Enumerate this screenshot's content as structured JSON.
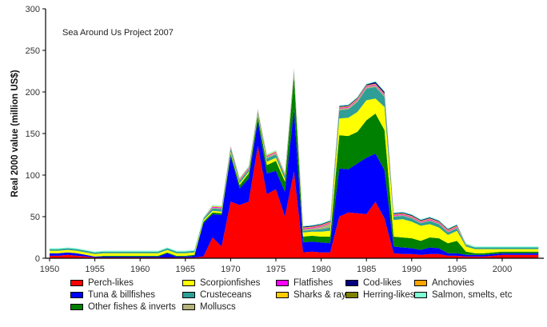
{
  "chart_data": {
    "type": "area",
    "stacked": true,
    "title": "",
    "annotation": "Sea Around Us Project 2007",
    "xlabel": "",
    "ylabel": "Real 2000 value (million US$)",
    "xlim": [
      1950,
      2005
    ],
    "ylim": [
      0,
      300
    ],
    "yticks": [
      "0",
      "50",
      "100",
      "150",
      "200",
      "250",
      "300"
    ],
    "xticks": [
      "1950",
      "1955",
      "1960",
      "1965",
      "1970",
      "1975",
      "1980",
      "1985",
      "1990",
      "1995",
      "2000"
    ],
    "grid": false,
    "legend_position": "bottom",
    "x": [
      1950,
      1951,
      1952,
      1953,
      1954,
      1955,
      1956,
      1957,
      1958,
      1959,
      1960,
      1961,
      1962,
      1963,
      1964,
      1965,
      1966,
      1967,
      1968,
      1969,
      1970,
      1971,
      1972,
      1973,
      1974,
      1975,
      1976,
      1977,
      1978,
      1979,
      1980,
      1981,
      1982,
      1983,
      1984,
      1985,
      1986,
      1987,
      1988,
      1989,
      1990,
      1991,
      1992,
      1993,
      1994,
      1995,
      1996,
      1997,
      1998,
      1999,
      2000,
      2001,
      2002,
      2003,
      2004
    ],
    "series": [
      {
        "name": "Perch-likes",
        "color": "#ff0000",
        "values": [
          3,
          3,
          4,
          3,
          2,
          1,
          1,
          1,
          1,
          1,
          1,
          1,
          1,
          1,
          1,
          1,
          1,
          2,
          25,
          14,
          68,
          64,
          68,
          135,
          77,
          83,
          50,
          104,
          7,
          8,
          7,
          7,
          50,
          55,
          54,
          53,
          68,
          48,
          6,
          5,
          5,
          4,
          5,
          5,
          3,
          3,
          2,
          2,
          2,
          3,
          4,
          4,
          4,
          4,
          4
        ]
      },
      {
        "name": "Tuna & billfishes",
        "color": "#0000ff",
        "values": [
          3,
          3,
          3,
          3,
          2,
          1,
          1,
          1,
          1,
          1,
          1,
          1,
          1,
          5,
          1,
          1,
          2,
          40,
          28,
          38,
          55,
          20,
          28,
          30,
          25,
          22,
          30,
          75,
          12,
          12,
          12,
          11,
          58,
          52,
          60,
          68,
          58,
          58,
          8,
          8,
          7,
          6,
          8,
          7,
          3,
          3,
          2,
          2,
          2,
          2,
          2,
          2,
          2,
          2,
          2
        ]
      },
      {
        "name": "Other fishes & inverts",
        "color": "#008000",
        "values": [
          0,
          0,
          0,
          0,
          0,
          0,
          1,
          1,
          1,
          1,
          1,
          1,
          1,
          1,
          1,
          1,
          1,
          2,
          2,
          2,
          3,
          4,
          6,
          6,
          10,
          12,
          12,
          40,
          7,
          7,
          7,
          8,
          40,
          40,
          38,
          45,
          48,
          48,
          12,
          12,
          12,
          11,
          12,
          12,
          12,
          15,
          4,
          2,
          2,
          2,
          2,
          2,
          2,
          2,
          2
        ]
      },
      {
        "name": "Scorpionfishes",
        "color": "#ffff00",
        "values": [
          3,
          3,
          3,
          3,
          3,
          3,
          3,
          3,
          3,
          3,
          3,
          3,
          3,
          3,
          3,
          3,
          3,
          2,
          2,
          2,
          2,
          2,
          2,
          2,
          4,
          4,
          3,
          2,
          5,
          5,
          6,
          7,
          20,
          22,
          24,
          24,
          18,
          28,
          20,
          22,
          20,
          18,
          16,
          13,
          10,
          12,
          6,
          5,
          5,
          4,
          3,
          3,
          3,
          3,
          3
        ]
      },
      {
        "name": "Crustaceans",
        "color": "#2e9e96",
        "values": [
          2,
          2,
          2,
          2,
          2,
          2,
          2,
          2,
          2,
          2,
          2,
          2,
          2,
          2,
          2,
          2,
          2,
          2,
          3,
          3,
          4,
          3,
          3,
          3,
          4,
          4,
          4,
          4,
          2,
          2,
          3,
          4,
          10,
          10,
          12,
          14,
          14,
          12,
          4,
          4,
          4,
          3,
          4,
          4,
          3,
          3,
          2,
          2,
          2,
          2,
          2,
          2,
          2,
          2,
          2
        ]
      },
      {
        "name": "Molluscs",
        "color": "#b5b27a",
        "values": [
          0,
          0,
          0,
          0,
          0,
          0,
          0,
          0,
          0,
          0,
          0,
          0,
          0,
          0,
          0,
          0,
          0,
          0,
          1,
          1,
          1,
          1,
          1,
          1,
          2,
          2,
          1,
          1,
          2,
          2,
          3,
          5,
          2,
          2,
          2,
          2,
          2,
          2,
          1,
          1,
          1,
          1,
          1,
          1,
          1,
          1,
          1,
          0,
          0,
          0,
          0,
          0,
          0,
          0,
          0
        ]
      },
      {
        "name": "Flatfishes",
        "color": "#ff00ff",
        "values": [
          0,
          0,
          0,
          0,
          0,
          0,
          0,
          0,
          0,
          0,
          0,
          0,
          0,
          0,
          0,
          0,
          0,
          0,
          1,
          1,
          1,
          1,
          1,
          1,
          1,
          1,
          1,
          1,
          1,
          1,
          1,
          1,
          1,
          1,
          1,
          1,
          1,
          1,
          1,
          1,
          1,
          1,
          1,
          1,
          1,
          1,
          0,
          0,
          0,
          0,
          0,
          0,
          0,
          0,
          0
        ]
      },
      {
        "name": "Sharks & rays",
        "color": "#ffcc00",
        "values": [
          0,
          0,
          0,
          0,
          0,
          0,
          0,
          0,
          0,
          0,
          0,
          0,
          0,
          0,
          0,
          0,
          0,
          0,
          1,
          1,
          1,
          1,
          1,
          1,
          1,
          1,
          1,
          1,
          1,
          1,
          1,
          1,
          1,
          1,
          1,
          1,
          1,
          1,
          1,
          1,
          1,
          1,
          1,
          1,
          1,
          1,
          0,
          0,
          0,
          0,
          0,
          0,
          0,
          0,
          0
        ]
      },
      {
        "name": "Cod-likes",
        "color": "#000080",
        "values": [
          0,
          0,
          0,
          0,
          0,
          0,
          0,
          0,
          0,
          0,
          0,
          0,
          0,
          0,
          0,
          0,
          0,
          0,
          0,
          0,
          0,
          0,
          0,
          0,
          0,
          0,
          0,
          0,
          1,
          1,
          1,
          1,
          1,
          1,
          1,
          1,
          2,
          2,
          1,
          1,
          1,
          1,
          1,
          1,
          1,
          1,
          0,
          0,
          0,
          0,
          0,
          0,
          0,
          0,
          0
        ]
      },
      {
        "name": "Herring-likes",
        "color": "#808000",
        "values": [
          0,
          0,
          0,
          0,
          0,
          0,
          0,
          0,
          0,
          0,
          0,
          0,
          0,
          0,
          0,
          0,
          0,
          0,
          0,
          0,
          0,
          0,
          0,
          0,
          0,
          0,
          0,
          0,
          0,
          0,
          0,
          0,
          0,
          0,
          0,
          0,
          0,
          0,
          0,
          0,
          0,
          0,
          0,
          0,
          0,
          0,
          0,
          0,
          0,
          0,
          0,
          0,
          0,
          0,
          0
        ]
      },
      {
        "name": "Anchovies",
        "color": "#ffa500",
        "values": [
          0,
          0,
          0,
          0,
          0,
          0,
          0,
          0,
          0,
          0,
          0,
          0,
          0,
          0,
          0,
          0,
          0,
          0,
          0,
          0,
          0,
          0,
          0,
          0,
          0,
          0,
          0,
          0,
          0,
          0,
          0,
          0,
          0,
          0,
          0,
          0,
          0,
          0,
          0,
          0,
          0,
          0,
          0,
          0,
          0,
          0,
          0,
          0,
          0,
          0,
          0,
          0,
          0,
          0,
          0
        ]
      },
      {
        "name": "Salmon, smelts, etc",
        "color": "#7fffd4",
        "values": [
          1,
          1,
          1,
          1,
          1,
          1,
          1,
          1,
          1,
          1,
          1,
          1,
          1,
          1,
          1,
          1,
          1,
          1,
          1,
          1,
          1,
          1,
          1,
          1,
          1,
          1,
          1,
          1,
          1,
          1,
          1,
          1,
          1,
          1,
          1,
          1,
          1,
          1,
          1,
          1,
          1,
          1,
          1,
          1,
          1,
          1,
          1,
          1,
          1,
          1,
          1,
          1,
          1,
          1,
          1
        ]
      }
    ]
  },
  "legend": {
    "items": [
      {
        "label": "Perch-likes",
        "color": "#ff0000"
      },
      {
        "label": "Tuna & billfishes",
        "color": "#0000ff"
      },
      {
        "label": "Other fishes & inverts",
        "color": "#008000"
      },
      {
        "label": "Scorpionfishes",
        "color": "#ffff00"
      },
      {
        "label": "Crusteceans",
        "color": "#2e9e96"
      },
      {
        "label": "Molluscs",
        "color": "#b5b27a"
      },
      {
        "label": "Flatfishes",
        "color": "#ff00ff"
      },
      {
        "label": "Sharks & rays",
        "color": "#ffcc00"
      },
      {
        "label": "Cod-likes",
        "color": "#000080"
      },
      {
        "label": "Herring-likes",
        "color": "#808000"
      },
      {
        "label": "Anchovies",
        "color": "#ffa500"
      },
      {
        "label": "Salmon, smelts, etc",
        "color": "#7fffd4"
      }
    ]
  }
}
